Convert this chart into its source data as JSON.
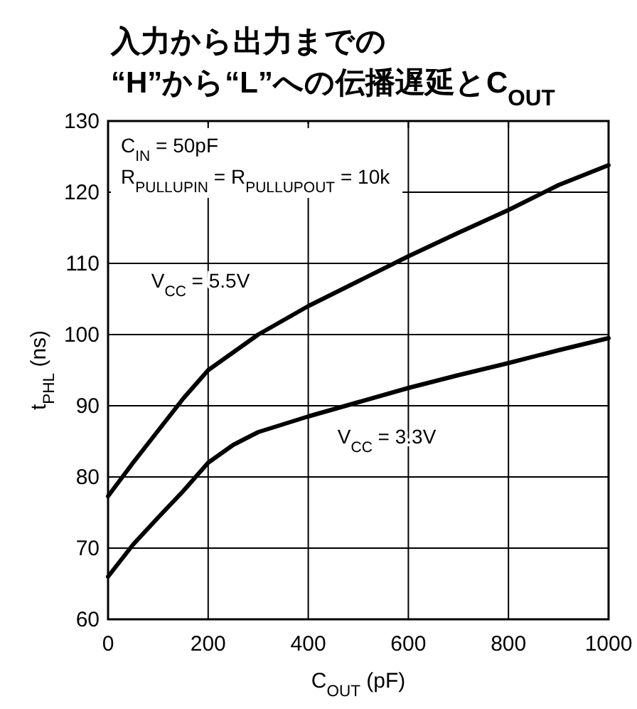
{
  "chart_data": {
    "type": "line",
    "title": "入力から出力までの\n“H”から“L”への伝播遅延とC$_{OUT}$",
    "xlabel": "C$_{OUT}$ (pF)",
    "ylabel": "t$_{PHL}$ (ns)",
    "x": [
      0,
      50,
      100,
      150,
      200,
      250,
      300,
      400,
      500,
      600,
      700,
      800,
      900,
      1000
    ],
    "series": [
      {
        "name": "V$_{CC}$ = 5.5V",
        "color": "#000000",
        "values": [
          77.3,
          82,
          86.5,
          91,
          95,
          97.5,
          100,
          104,
          107.5,
          111,
          114.3,
          117.5,
          121,
          123.8
        ]
      },
      {
        "name": "V$_{CC}$ = 3.3V",
        "color": "#000000",
        "values": [
          66,
          70.5,
          74.3,
          78,
          82,
          84.5,
          86.3,
          88.5,
          90.5,
          92.5,
          94.3,
          96,
          97.8,
          99.5
        ]
      }
    ],
    "annotations": [
      "C$_{IN}$ = 50pF",
      "R$_{PULLUPIN}$ = R$_{PULLUPOUT}$ = 10k"
    ],
    "xlim": [
      0,
      1000
    ],
    "xticks": [
      0,
      200,
      400,
      600,
      800,
      1000
    ],
    "ylim": [
      60,
      130
    ],
    "yticks": [
      60,
      70,
      80,
      90,
      100,
      110,
      120,
      130
    ],
    "grid": true,
    "marker": "none",
    "line_style": "solid"
  }
}
